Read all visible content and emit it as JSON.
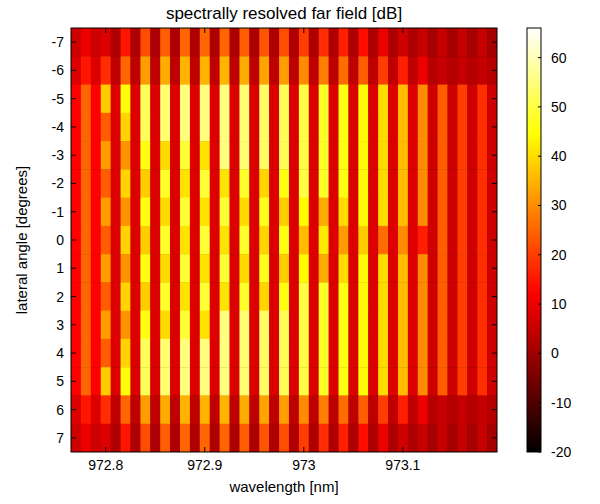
{
  "chart_data": {
    "type": "heatmap",
    "title": "spectrally resolved far field [dB]",
    "x_label": "wavelength [nm]",
    "y_label": "lateral angle [degrees]",
    "x": [
      972.77,
      972.78,
      972.79,
      972.8,
      972.81,
      972.82,
      972.83,
      972.84,
      972.85,
      972.86,
      972.87,
      972.88,
      972.89,
      972.9,
      972.91,
      972.92,
      972.93,
      972.94,
      972.95,
      972.96,
      972.97,
      972.98,
      972.99,
      973,
      973.01,
      973.02,
      973.03,
      973.04,
      973.05,
      973.06,
      973.07,
      973.08,
      973.09,
      973.1,
      973.11,
      973.12,
      973.13,
      973.14,
      973.15,
      973.16,
      973.17,
      973.18,
      973.19
    ],
    "y": [
      -7,
      -6,
      -5,
      -4,
      -3,
      -2,
      -1,
      0,
      1,
      2,
      3,
      4,
      5,
      6,
      7
    ],
    "cells": [
      [
        6,
        10,
        6,
        8,
        2,
        15,
        2,
        22,
        2,
        24,
        2,
        25,
        2,
        25,
        2,
        25,
        2,
        24,
        2,
        23,
        2,
        22,
        2,
        20,
        2,
        18,
        2,
        16,
        2,
        14,
        2,
        10,
        2,
        6,
        2,
        5,
        1,
        5,
        1,
        5,
        1,
        5,
        1
      ],
      [
        8,
        15,
        8,
        18,
        4,
        25,
        4,
        32,
        4,
        34,
        4,
        35,
        4,
        35,
        4,
        35,
        4,
        34,
        4,
        33,
        4,
        32,
        4,
        30,
        4,
        28,
        4,
        26,
        4,
        24,
        4,
        20,
        4,
        16,
        4,
        10,
        3,
        5,
        3,
        5,
        3,
        5,
        3
      ],
      [
        12,
        25,
        12,
        38,
        8,
        45,
        8,
        52,
        8,
        54,
        8,
        55,
        8,
        55,
        8,
        55,
        8,
        54,
        8,
        53,
        8,
        52,
        8,
        50,
        8,
        48,
        8,
        46,
        8,
        44,
        8,
        40,
        8,
        36,
        8,
        30,
        6,
        24,
        6,
        20,
        6,
        18,
        6
      ],
      [
        12,
        25,
        12,
        24,
        8,
        39,
        8,
        52,
        8,
        54,
        8,
        55,
        8,
        55,
        8,
        55,
        8,
        54,
        8,
        53,
        8,
        52,
        8,
        50,
        8,
        48,
        8,
        46,
        8,
        44,
        8,
        40,
        8,
        36,
        8,
        30,
        6,
        24,
        6,
        20,
        6,
        18,
        6
      ],
      [
        12,
        25,
        12,
        32,
        8,
        31,
        8,
        46,
        8,
        40,
        8,
        49,
        8,
        41,
        8,
        55,
        8,
        54,
        8,
        53,
        8,
        52,
        8,
        50,
        8,
        48,
        8,
        46,
        8,
        44,
        8,
        40,
        8,
        36,
        8,
        30,
        6,
        24,
        6,
        20,
        6,
        18,
        6
      ],
      [
        12,
        25,
        12,
        24,
        8,
        39,
        8,
        38,
        8,
        48,
        8,
        41,
        8,
        49,
        8,
        41,
        8,
        48,
        8,
        39,
        8,
        46,
        8,
        50,
        8,
        48,
        8,
        46,
        8,
        44,
        8,
        40,
        8,
        36,
        8,
        30,
        6,
        24,
        6,
        20,
        6,
        18,
        6
      ],
      [
        12,
        25,
        12,
        32,
        8,
        31,
        8,
        46,
        8,
        40,
        8,
        49,
        8,
        41,
        8,
        49,
        8,
        40,
        8,
        47,
        8,
        38,
        8,
        44,
        8,
        34,
        8,
        40,
        8,
        44,
        8,
        40,
        8,
        36,
        8,
        30,
        6,
        24,
        6,
        20,
        6,
        18,
        6
      ],
      [
        12,
        25,
        12,
        24,
        8,
        39,
        8,
        38,
        8,
        48,
        8,
        41,
        8,
        49,
        8,
        41,
        8,
        48,
        8,
        39,
        8,
        46,
        8,
        36,
        8,
        42,
        8,
        32,
        8,
        38,
        8,
        26,
        8,
        30,
        8,
        16,
        6,
        24,
        6,
        20,
        6,
        18,
        6
      ],
      [
        12,
        25,
        12,
        32,
        8,
        31,
        8,
        46,
        8,
        40,
        8,
        49,
        8,
        41,
        8,
        49,
        8,
        40,
        8,
        47,
        8,
        38,
        8,
        44,
        8,
        34,
        8,
        40,
        8,
        44,
        8,
        40,
        8,
        36,
        8,
        30,
        6,
        24,
        6,
        20,
        6,
        18,
        6
      ],
      [
        12,
        25,
        12,
        24,
        8,
        39,
        8,
        38,
        8,
        48,
        8,
        41,
        8,
        49,
        8,
        41,
        8,
        48,
        8,
        39,
        8,
        46,
        8,
        50,
        8,
        48,
        8,
        46,
        8,
        44,
        8,
        40,
        8,
        36,
        8,
        30,
        6,
        24,
        6,
        20,
        6,
        18,
        6
      ],
      [
        12,
        25,
        12,
        32,
        8,
        31,
        8,
        46,
        8,
        40,
        8,
        49,
        8,
        41,
        8,
        55,
        8,
        54,
        8,
        53,
        8,
        52,
        8,
        50,
        8,
        48,
        8,
        46,
        8,
        44,
        8,
        40,
        8,
        36,
        8,
        30,
        6,
        24,
        6,
        20,
        6,
        18,
        6
      ],
      [
        12,
        25,
        12,
        24,
        8,
        39,
        8,
        52,
        8,
        54,
        8,
        55,
        8,
        55,
        8,
        55,
        8,
        54,
        8,
        53,
        8,
        52,
        8,
        50,
        8,
        48,
        8,
        46,
        8,
        44,
        8,
        40,
        8,
        36,
        8,
        30,
        6,
        24,
        6,
        20,
        6,
        18,
        6
      ],
      [
        12,
        25,
        12,
        38,
        8,
        45,
        8,
        52,
        8,
        54,
        8,
        55,
        8,
        55,
        8,
        55,
        8,
        54,
        8,
        53,
        8,
        52,
        8,
        50,
        8,
        48,
        8,
        46,
        8,
        44,
        8,
        40,
        8,
        36,
        8,
        30,
        6,
        24,
        6,
        20,
        6,
        18,
        6
      ],
      [
        8,
        15,
        8,
        18,
        4,
        25,
        4,
        32,
        4,
        34,
        4,
        35,
        4,
        35,
        4,
        35,
        4,
        34,
        4,
        33,
        4,
        32,
        4,
        30,
        4,
        28,
        4,
        26,
        4,
        24,
        4,
        20,
        4,
        16,
        4,
        10,
        3,
        5,
        3,
        5,
        3,
        5,
        3
      ],
      [
        6,
        10,
        6,
        8,
        2,
        15,
        2,
        22,
        2,
        24,
        2,
        25,
        2,
        25,
        2,
        25,
        2,
        24,
        2,
        23,
        2,
        22,
        2,
        20,
        2,
        18,
        2,
        16,
        2,
        14,
        2,
        10,
        2,
        6,
        2,
        5,
        1,
        5,
        1,
        5,
        1,
        5,
        1
      ]
    ],
    "xlim": [
      972.765,
      973.195
    ],
    "ylim": [
      7.5,
      -7.5
    ],
    "xticks": [
      972.8,
      972.9,
      973,
      973.1
    ],
    "yticks": [
      -7,
      -6,
      -5,
      -4,
      -3,
      -2,
      -1,
      0,
      1,
      2,
      3,
      4,
      5,
      6,
      7
    ],
    "colorbar_range": [
      -20,
      66
    ],
    "colorbar_ticks": [
      -20,
      -10,
      0,
      10,
      20,
      30,
      40,
      50,
      60
    ]
  }
}
